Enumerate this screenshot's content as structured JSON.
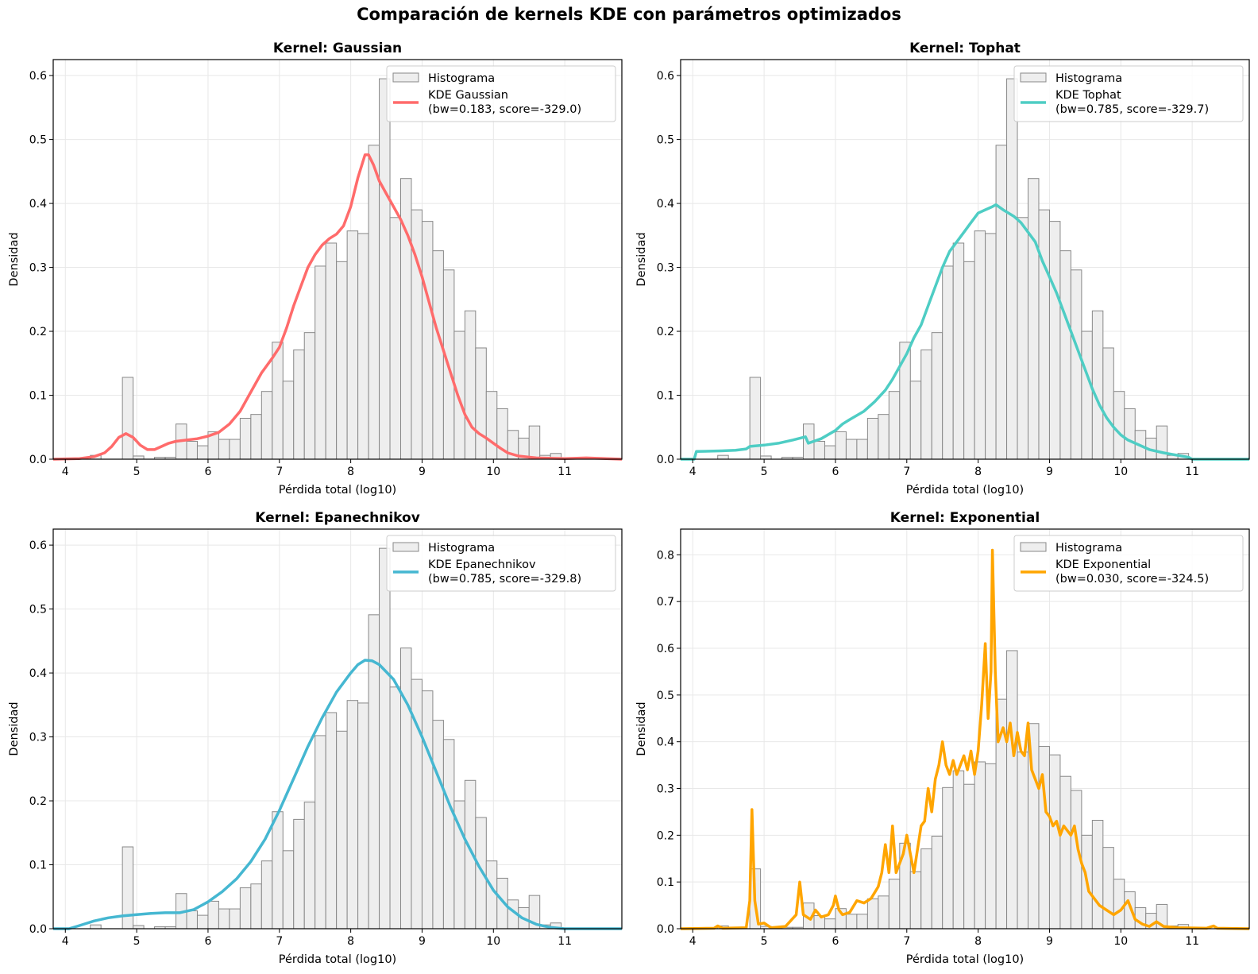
{
  "suptitle": "Comparación de kernels KDE con parámetros optimizados",
  "hist": {
    "name": "Histograma",
    "bin_start": 4.8,
    "bin_width": 0.15,
    "heights": [
      0.128,
      0.005,
      0.0,
      0.003,
      0.003,
      0.055,
      0.028,
      0.021,
      0.043,
      0.031,
      0.031,
      0.064,
      0.07,
      0.106,
      0.183,
      0.122,
      0.171,
      0.198,
      0.302,
      0.338,
      0.309,
      0.357,
      0.353,
      0.491,
      0.595,
      0.378,
      0.439,
      0.39,
      0.372,
      0.326,
      0.296,
      0.2,
      0.232,
      0.174,
      0.106,
      0.079,
      0.045,
      0.033,
      0.052,
      0.006,
      0.009
    ],
    "extra_bars": [
      {
        "x": 4.35,
        "w": 0.15,
        "h": 0.006
      }
    ],
    "fill": "#eeeeee",
    "edge": "#888888"
  },
  "chart_data": [
    {
      "type": "line",
      "title": "Kernel: Gaussian",
      "xlabel": "Pérdida total (log10)",
      "ylabel": "Densidad",
      "xlim": [
        3.83,
        11.8
      ],
      "ylim": [
        0,
        0.625
      ],
      "xticks": [
        4,
        5,
        6,
        7,
        8,
        9,
        10,
        11
      ],
      "yticks": [
        0.0,
        0.1,
        0.2,
        0.3,
        0.4,
        0.5,
        0.6
      ],
      "grid": true,
      "legend": "top-right",
      "series_name": "KDE Gaussian\n(bw=0.183, score=-329.0)",
      "color": "#ff6b6b",
      "curve": [
        [
          3.83,
          0.0
        ],
        [
          4.2,
          0.001
        ],
        [
          4.4,
          0.004
        ],
        [
          4.55,
          0.01
        ],
        [
          4.65,
          0.02
        ],
        [
          4.75,
          0.034
        ],
        [
          4.85,
          0.04
        ],
        [
          4.95,
          0.034
        ],
        [
          5.05,
          0.022
        ],
        [
          5.15,
          0.015
        ],
        [
          5.25,
          0.015
        ],
        [
          5.35,
          0.02
        ],
        [
          5.45,
          0.025
        ],
        [
          5.55,
          0.028
        ],
        [
          5.7,
          0.03
        ],
        [
          5.85,
          0.032
        ],
        [
          6.0,
          0.036
        ],
        [
          6.15,
          0.042
        ],
        [
          6.3,
          0.055
        ],
        [
          6.45,
          0.075
        ],
        [
          6.6,
          0.105
        ],
        [
          6.75,
          0.135
        ],
        [
          6.9,
          0.158
        ],
        [
          7.0,
          0.175
        ],
        [
          7.1,
          0.205
        ],
        [
          7.2,
          0.24
        ],
        [
          7.3,
          0.27
        ],
        [
          7.4,
          0.3
        ],
        [
          7.5,
          0.32
        ],
        [
          7.6,
          0.335
        ],
        [
          7.7,
          0.345
        ],
        [
          7.8,
          0.352
        ],
        [
          7.9,
          0.365
        ],
        [
          8.0,
          0.395
        ],
        [
          8.1,
          0.44
        ],
        [
          8.2,
          0.476
        ],
        [
          8.25,
          0.476
        ],
        [
          8.32,
          0.46
        ],
        [
          8.4,
          0.435
        ],
        [
          8.5,
          0.415
        ],
        [
          8.6,
          0.395
        ],
        [
          8.7,
          0.375
        ],
        [
          8.8,
          0.35
        ],
        [
          8.9,
          0.32
        ],
        [
          9.0,
          0.285
        ],
        [
          9.1,
          0.245
        ],
        [
          9.2,
          0.205
        ],
        [
          9.3,
          0.17
        ],
        [
          9.4,
          0.135
        ],
        [
          9.5,
          0.1
        ],
        [
          9.6,
          0.07
        ],
        [
          9.7,
          0.05
        ],
        [
          9.8,
          0.04
        ],
        [
          9.9,
          0.033
        ],
        [
          10.0,
          0.025
        ],
        [
          10.1,
          0.017
        ],
        [
          10.2,
          0.01
        ],
        [
          10.35,
          0.005
        ],
        [
          10.6,
          0.002
        ],
        [
          11.0,
          0.001
        ],
        [
          11.3,
          0.002
        ],
        [
          11.8,
          0.0
        ]
      ]
    },
    {
      "type": "line",
      "title": "Kernel: Tophat",
      "xlabel": "Pérdida total (log10)",
      "ylabel": "Densidad",
      "xlim": [
        3.83,
        11.8
      ],
      "ylim": [
        0,
        0.625
      ],
      "xticks": [
        4,
        5,
        6,
        7,
        8,
        9,
        10,
        11
      ],
      "yticks": [
        0.0,
        0.1,
        0.2,
        0.3,
        0.4,
        0.5,
        0.6
      ],
      "grid": true,
      "legend": "top-right",
      "series_name": "KDE Tophat\n(bw=0.785, score=-329.7)",
      "color": "#4ecdc4",
      "curve": [
        [
          3.83,
          0.0
        ],
        [
          4.02,
          0.0
        ],
        [
          4.05,
          0.012
        ],
        [
          4.4,
          0.013
        ],
        [
          4.6,
          0.014
        ],
        [
          4.75,
          0.016
        ],
        [
          4.8,
          0.02
        ],
        [
          5.0,
          0.022
        ],
        [
          5.2,
          0.025
        ],
        [
          5.4,
          0.03
        ],
        [
          5.58,
          0.035
        ],
        [
          5.62,
          0.025
        ],
        [
          5.8,
          0.032
        ],
        [
          6.0,
          0.045
        ],
        [
          6.1,
          0.055
        ],
        [
          6.2,
          0.062
        ],
        [
          6.4,
          0.075
        ],
        [
          6.55,
          0.09
        ],
        [
          6.7,
          0.108
        ],
        [
          6.8,
          0.125
        ],
        [
          6.9,
          0.145
        ],
        [
          7.0,
          0.165
        ],
        [
          7.1,
          0.19
        ],
        [
          7.2,
          0.21
        ],
        [
          7.3,
          0.24
        ],
        [
          7.4,
          0.27
        ],
        [
          7.5,
          0.3
        ],
        [
          7.6,
          0.325
        ],
        [
          7.7,
          0.34
        ],
        [
          7.8,
          0.355
        ],
        [
          7.9,
          0.37
        ],
        [
          8.0,
          0.385
        ],
        [
          8.1,
          0.39
        ],
        [
          8.2,
          0.395
        ],
        [
          8.25,
          0.398
        ],
        [
          8.35,
          0.39
        ],
        [
          8.5,
          0.38
        ],
        [
          8.6,
          0.37
        ],
        [
          8.7,
          0.355
        ],
        [
          8.8,
          0.34
        ],
        [
          8.85,
          0.325
        ],
        [
          8.9,
          0.31
        ],
        [
          9.0,
          0.285
        ],
        [
          9.1,
          0.26
        ],
        [
          9.2,
          0.23
        ],
        [
          9.3,
          0.2
        ],
        [
          9.4,
          0.17
        ],
        [
          9.5,
          0.14
        ],
        [
          9.6,
          0.11
        ],
        [
          9.7,
          0.085
        ],
        [
          9.8,
          0.065
        ],
        [
          9.9,
          0.05
        ],
        [
          10.0,
          0.038
        ],
        [
          10.1,
          0.03
        ],
        [
          10.2,
          0.025
        ],
        [
          10.4,
          0.015
        ],
        [
          10.6,
          0.01
        ],
        [
          10.8,
          0.006
        ],
        [
          10.95,
          0.003
        ],
        [
          11.0,
          0.0
        ],
        [
          11.8,
          0.0
        ]
      ]
    },
    {
      "type": "line",
      "title": "Kernel: Epanechnikov",
      "xlabel": "Pérdida total (log10)",
      "ylabel": "Densidad",
      "xlim": [
        3.83,
        11.8
      ],
      "ylim": [
        0,
        0.625
      ],
      "xticks": [
        4,
        5,
        6,
        7,
        8,
        9,
        10,
        11
      ],
      "yticks": [
        0.0,
        0.1,
        0.2,
        0.3,
        0.4,
        0.5,
        0.6
      ],
      "grid": true,
      "legend": "top-right",
      "series_name": "KDE Epanechnikov\n(bw=0.785, score=-329.8)",
      "color": "#45b7d1",
      "curve": [
        [
          3.83,
          0.0
        ],
        [
          4.05,
          0.0
        ],
        [
          4.2,
          0.005
        ],
        [
          4.4,
          0.012
        ],
        [
          4.6,
          0.017
        ],
        [
          4.8,
          0.02
        ],
        [
          5.0,
          0.022
        ],
        [
          5.2,
          0.024
        ],
        [
          5.4,
          0.025
        ],
        [
          5.6,
          0.025
        ],
        [
          5.8,
          0.03
        ],
        [
          6.0,
          0.042
        ],
        [
          6.2,
          0.058
        ],
        [
          6.4,
          0.078
        ],
        [
          6.6,
          0.105
        ],
        [
          6.8,
          0.14
        ],
        [
          7.0,
          0.185
        ],
        [
          7.2,
          0.235
        ],
        [
          7.4,
          0.285
        ],
        [
          7.6,
          0.33
        ],
        [
          7.8,
          0.37
        ],
        [
          8.0,
          0.4
        ],
        [
          8.1,
          0.413
        ],
        [
          8.2,
          0.42
        ],
        [
          8.3,
          0.419
        ],
        [
          8.4,
          0.413
        ],
        [
          8.6,
          0.39
        ],
        [
          8.8,
          0.35
        ],
        [
          9.0,
          0.3
        ],
        [
          9.2,
          0.245
        ],
        [
          9.4,
          0.19
        ],
        [
          9.6,
          0.14
        ],
        [
          9.8,
          0.097
        ],
        [
          10.0,
          0.06
        ],
        [
          10.2,
          0.034
        ],
        [
          10.4,
          0.017
        ],
        [
          10.6,
          0.007
        ],
        [
          10.8,
          0.002
        ],
        [
          11.0,
          0.0
        ],
        [
          11.8,
          0.0
        ]
      ]
    },
    {
      "type": "line",
      "title": "Kernel: Exponential",
      "xlabel": "Pérdida total (log10)",
      "ylabel": "Densidad",
      "xlim": [
        3.83,
        11.8
      ],
      "ylim": [
        0,
        0.855
      ],
      "xticks": [
        4,
        5,
        6,
        7,
        8,
        9,
        10,
        11
      ],
      "yticks": [
        0.0,
        0.1,
        0.2,
        0.3,
        0.4,
        0.5,
        0.6,
        0.7,
        0.8
      ],
      "grid": true,
      "legend": "top-right",
      "series_name": "KDE Exponential\n(bw=0.030, score=-324.5)",
      "color": "#ffa500",
      "curve": [
        [
          3.83,
          0.0
        ],
        [
          4.3,
          0.001
        ],
        [
          4.35,
          0.006
        ],
        [
          4.42,
          0.001
        ],
        [
          4.75,
          0.002
        ],
        [
          4.8,
          0.06
        ],
        [
          4.83,
          0.255
        ],
        [
          4.87,
          0.06
        ],
        [
          4.92,
          0.01
        ],
        [
          5.0,
          0.012
        ],
        [
          5.1,
          0.002
        ],
        [
          5.3,
          0.005
        ],
        [
          5.45,
          0.03
        ],
        [
          5.5,
          0.1
        ],
        [
          5.55,
          0.03
        ],
        [
          5.65,
          0.02
        ],
        [
          5.72,
          0.04
        ],
        [
          5.8,
          0.025
        ],
        [
          5.9,
          0.03
        ],
        [
          5.97,
          0.05
        ],
        [
          6.0,
          0.07
        ],
        [
          6.05,
          0.04
        ],
        [
          6.1,
          0.03
        ],
        [
          6.2,
          0.035
        ],
        [
          6.3,
          0.06
        ],
        [
          6.4,
          0.055
        ],
        [
          6.5,
          0.065
        ],
        [
          6.6,
          0.09
        ],
        [
          6.65,
          0.12
        ],
        [
          6.7,
          0.18
        ],
        [
          6.75,
          0.12
        ],
        [
          6.8,
          0.22
        ],
        [
          6.85,
          0.12
        ],
        [
          6.9,
          0.14
        ],
        [
          6.95,
          0.16
        ],
        [
          7.0,
          0.2
        ],
        [
          7.05,
          0.16
        ],
        [
          7.1,
          0.12
        ],
        [
          7.15,
          0.17
        ],
        [
          7.2,
          0.22
        ],
        [
          7.25,
          0.23
        ],
        [
          7.3,
          0.3
        ],
        [
          7.35,
          0.25
        ],
        [
          7.4,
          0.32
        ],
        [
          7.45,
          0.35
        ],
        [
          7.5,
          0.4
        ],
        [
          7.55,
          0.35
        ],
        [
          7.6,
          0.33
        ],
        [
          7.65,
          0.36
        ],
        [
          7.7,
          0.33
        ],
        [
          7.75,
          0.35
        ],
        [
          7.8,
          0.37
        ],
        [
          7.85,
          0.34
        ],
        [
          7.9,
          0.38
        ],
        [
          7.95,
          0.33
        ],
        [
          8.0,
          0.38
        ],
        [
          8.05,
          0.48
        ],
        [
          8.1,
          0.61
        ],
        [
          8.14,
          0.45
        ],
        [
          8.18,
          0.55
        ],
        [
          8.2,
          0.81
        ],
        [
          8.24,
          0.55
        ],
        [
          8.28,
          0.4
        ],
        [
          8.35,
          0.43
        ],
        [
          8.4,
          0.4
        ],
        [
          8.45,
          0.44
        ],
        [
          8.5,
          0.37
        ],
        [
          8.55,
          0.42
        ],
        [
          8.6,
          0.38
        ],
        [
          8.65,
          0.37
        ],
        [
          8.7,
          0.44
        ],
        [
          8.75,
          0.34
        ],
        [
          8.8,
          0.32
        ],
        [
          8.85,
          0.3
        ],
        [
          8.9,
          0.33
        ],
        [
          8.95,
          0.25
        ],
        [
          9.0,
          0.24
        ],
        [
          9.05,
          0.22
        ],
        [
          9.1,
          0.23
        ],
        [
          9.15,
          0.2
        ],
        [
          9.2,
          0.22
        ],
        [
          9.3,
          0.2
        ],
        [
          9.35,
          0.22
        ],
        [
          9.4,
          0.17
        ],
        [
          9.45,
          0.14
        ],
        [
          9.5,
          0.12
        ],
        [
          9.55,
          0.08
        ],
        [
          9.6,
          0.07
        ],
        [
          9.7,
          0.05
        ],
        [
          9.8,
          0.04
        ],
        [
          9.9,
          0.03
        ],
        [
          10.0,
          0.04
        ],
        [
          10.05,
          0.05
        ],
        [
          10.1,
          0.06
        ],
        [
          10.15,
          0.04
        ],
        [
          10.2,
          0.02
        ],
        [
          10.3,
          0.01
        ],
        [
          10.4,
          0.005
        ],
        [
          10.5,
          0.015
        ],
        [
          10.6,
          0.005
        ],
        [
          10.8,
          0.002
        ],
        [
          11.2,
          0.001
        ],
        [
          11.3,
          0.006
        ],
        [
          11.35,
          0.001
        ],
        [
          11.8,
          0.0
        ]
      ]
    }
  ]
}
